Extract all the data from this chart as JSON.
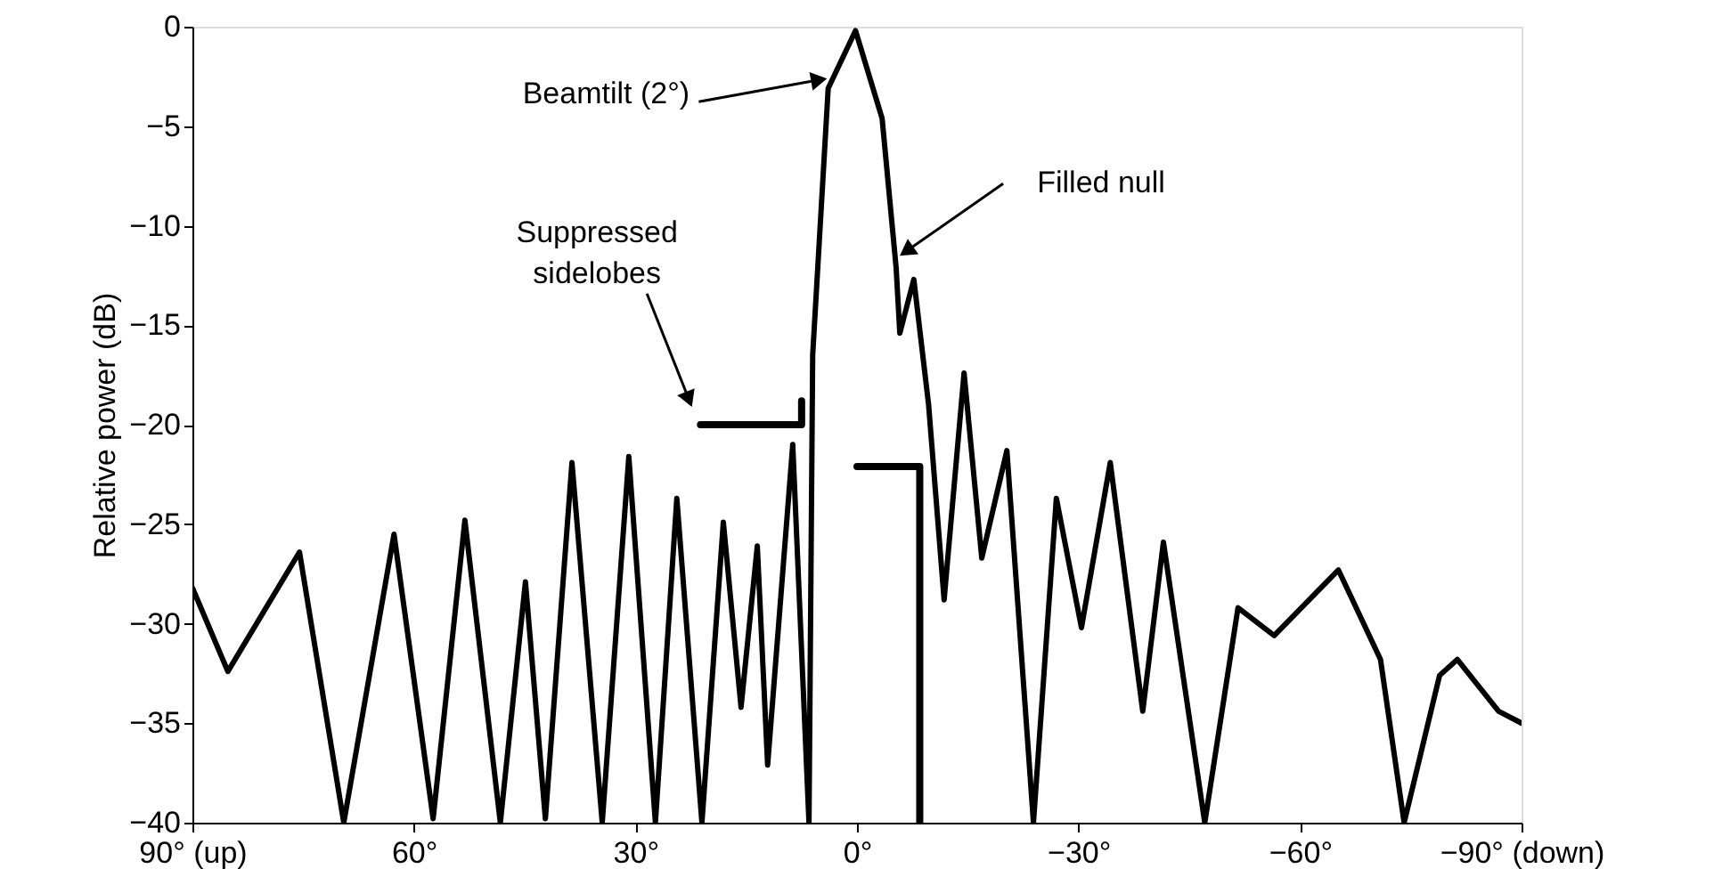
{
  "chart_data": {
    "type": "line",
    "ylabel": "Relative power (dB)",
    "xlim": [
      90,
      -90
    ],
    "ylim": [
      -40,
      0
    ],
    "xticks": [
      {
        "value": 90,
        "label": "90° (up)"
      },
      {
        "value": 60,
        "label": "60°"
      },
      {
        "value": 30,
        "label": "30°"
      },
      {
        "value": 0,
        "label": "0°"
      },
      {
        "value": -30,
        "label": "−30°"
      },
      {
        "value": -60,
        "label": "−60°"
      },
      {
        "value": -90,
        "label": "−90° (down)"
      }
    ],
    "yticks": [
      -40,
      -35,
      -30,
      -25,
      -20,
      -15,
      -10,
      -5,
      0
    ],
    "grid": false,
    "line_style": "solid",
    "marker": "none",
    "series": [
      {
        "color": "#000000",
        "x": [
          90,
          85.2,
          75.5,
          69.5,
          62.7,
          57.4,
          53.1,
          48.3,
          44.9,
          42.2,
          38.6,
          34.5,
          30.9,
          27.3,
          24.4,
          21,
          18.1,
          15.7,
          13.5,
          12.1,
          8.7,
          6.5,
          6.0,
          3.9,
          0.2,
          -3.4,
          -5.3,
          -5.8,
          -7.7,
          -9.7,
          -11.8,
          -14.5,
          -16.9,
          -20.3,
          -23.9,
          -27,
          -30.4,
          -34.3,
          -38.7,
          -41.5,
          -47.1,
          -51.6,
          -56.5,
          -65.2,
          -70.9,
          -74.1,
          -78.9,
          -81.3,
          -86.9,
          -90
        ],
        "values": [
          -28.2,
          -32.4,
          -26.4,
          -40,
          -25.5,
          -39.8,
          -24.8,
          -40,
          -27.9,
          -39.8,
          -21.9,
          -40,
          -21.6,
          -40,
          -23.7,
          -40,
          -24.9,
          -34.2,
          -26.1,
          -37.1,
          -21,
          -40,
          -16.5,
          -3.1,
          -0.2,
          -4.6,
          -12.1,
          -15.4,
          -12.7,
          -19,
          -28.8,
          -17.4,
          -26.7,
          -21.3,
          -40,
          -23.7,
          -30.2,
          -21.9,
          -34.4,
          -25.9,
          -40,
          -29.2,
          -30.6,
          -27.3,
          -31.8,
          -40,
          -32.6,
          -31.8,
          -34.4,
          -35
        ]
      },
      {
        "color": "#000000",
        "x": [
          21.2,
          7.5,
          7.5
        ],
        "values": [
          -20,
          -20,
          -18.8
        ]
      },
      {
        "color": "#000000",
        "x": [
          0,
          -8.5,
          -8.5
        ],
        "values": [
          -22.1,
          -22.1,
          -40
        ]
      }
    ],
    "annotations": [
      {
        "text": "Beamtilt (2°)",
        "x": 5.5,
        "y": -2.7
      },
      {
        "text": "Filled null",
        "x": -7,
        "y": -11.2
      },
      {
        "text": "Suppressed sidelobes",
        "x": 22.9,
        "y": -18.6
      }
    ]
  }
}
